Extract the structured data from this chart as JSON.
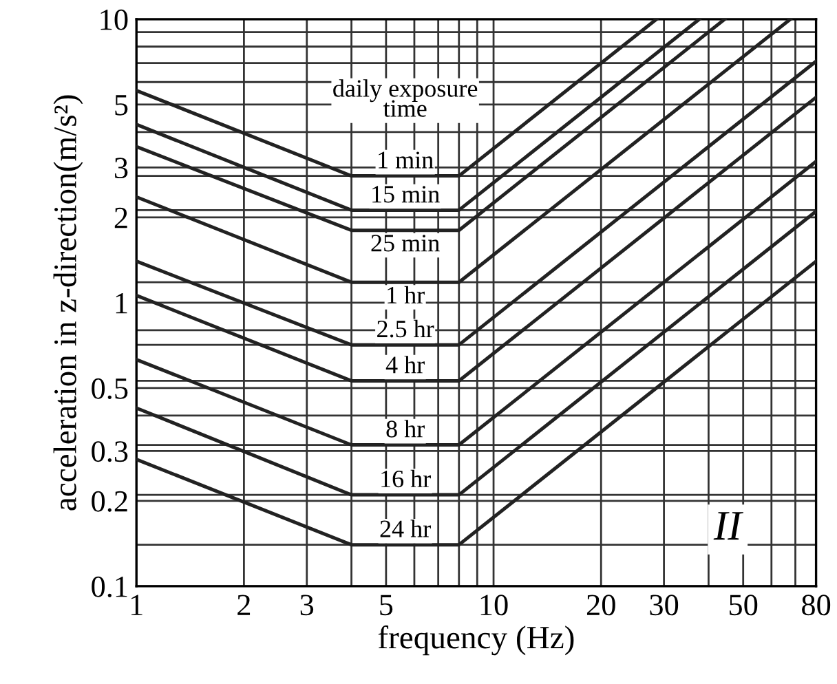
{
  "chart_data": {
    "type": "line",
    "xlabel": "frequency (Hz)",
    "ylabel": "acceleration in z-direction(m/s²)",
    "log": "xy",
    "grid": true,
    "marker": "none",
    "line_style": "solid",
    "xlim": [
      1,
      80
    ],
    "ylim": [
      0.1,
      10
    ],
    "xticks": [
      1,
      2,
      3,
      {
        "value": 4,
        "label": null
      },
      5,
      {
        "value": 6,
        "label": null
      },
      {
        "value": 7,
        "label": null
      },
      {
        "value": 8,
        "label": null
      },
      {
        "value": 9,
        "label": null
      },
      10,
      20,
      30,
      {
        "value": 40,
        "label": null
      },
      50,
      {
        "value": 60,
        "label": null
      },
      {
        "value": 70,
        "label": null
      },
      80
    ],
    "yticks": [
      0.1,
      {
        "value": 0.14,
        "label": null
      },
      0.2,
      {
        "value": 0.21,
        "label": null
      },
      0.3,
      {
        "value": 0.315,
        "label": null
      },
      {
        "value": 0.4,
        "label": null
      },
      0.5,
      {
        "value": 0.53,
        "label": null
      },
      {
        "value": 0.71,
        "label": null
      },
      {
        "value": 0.8,
        "label": null
      },
      1,
      {
        "value": 1.18,
        "label": null
      },
      2,
      {
        "value": 2.12,
        "label": null
      },
      {
        "value": 2.8,
        "label": null
      },
      3,
      {
        "value": 4,
        "label": null
      },
      5,
      {
        "value": 6,
        "label": null
      },
      {
        "value": 7,
        "label": null
      },
      {
        "value": 8,
        "label": null
      },
      {
        "value": 9,
        "label": null
      },
      10
    ],
    "series": [
      {
        "color": "#222222",
        "x": [
          1,
          4,
          8,
          28.6
        ],
        "values": [
          5.6,
          2.8,
          2.8,
          10
        ]
      },
      {
        "color": "#222222",
        "x": [
          1,
          4,
          8,
          37.7
        ],
        "values": [
          4.25,
          2.12,
          2.12,
          10
        ]
      },
      {
        "color": "#222222",
        "x": [
          1,
          4,
          8,
          44.4
        ],
        "values": [
          3.55,
          1.8,
          1.8,
          10
        ]
      },
      {
        "color": "#222222",
        "x": [
          1,
          4,
          8,
          67.8
        ],
        "values": [
          2.36,
          1.18,
          1.18,
          10
        ]
      },
      {
        "color": "#222222",
        "x": [
          1,
          4,
          8,
          80
        ],
        "values": [
          1.4,
          0.71,
          0.71,
          7.1
        ]
      },
      {
        "color": "#222222",
        "x": [
          1,
          4,
          8,
          80
        ],
        "values": [
          1.06,
          0.53,
          0.53,
          5.3
        ]
      },
      {
        "color": "#222222",
        "x": [
          1,
          4,
          8,
          80
        ],
        "values": [
          0.63,
          0.315,
          0.315,
          3.15
        ]
      },
      {
        "color": "#222222",
        "x": [
          1,
          4,
          8,
          80
        ],
        "values": [
          0.425,
          0.21,
          0.21,
          2.1
        ]
      },
      {
        "color": "#222222",
        "x": [
          1,
          4,
          8,
          80
        ],
        "values": [
          0.28,
          0.14,
          0.14,
          1.4
        ]
      }
    ],
    "annotations": [
      "daily exposure\ntime",
      "1 min",
      "15 min",
      "25 min",
      "1 hr",
      "2.5 hr",
      "4 hr",
      "8 hr",
      "16 hr",
      "24 hr",
      "II"
    ]
  }
}
